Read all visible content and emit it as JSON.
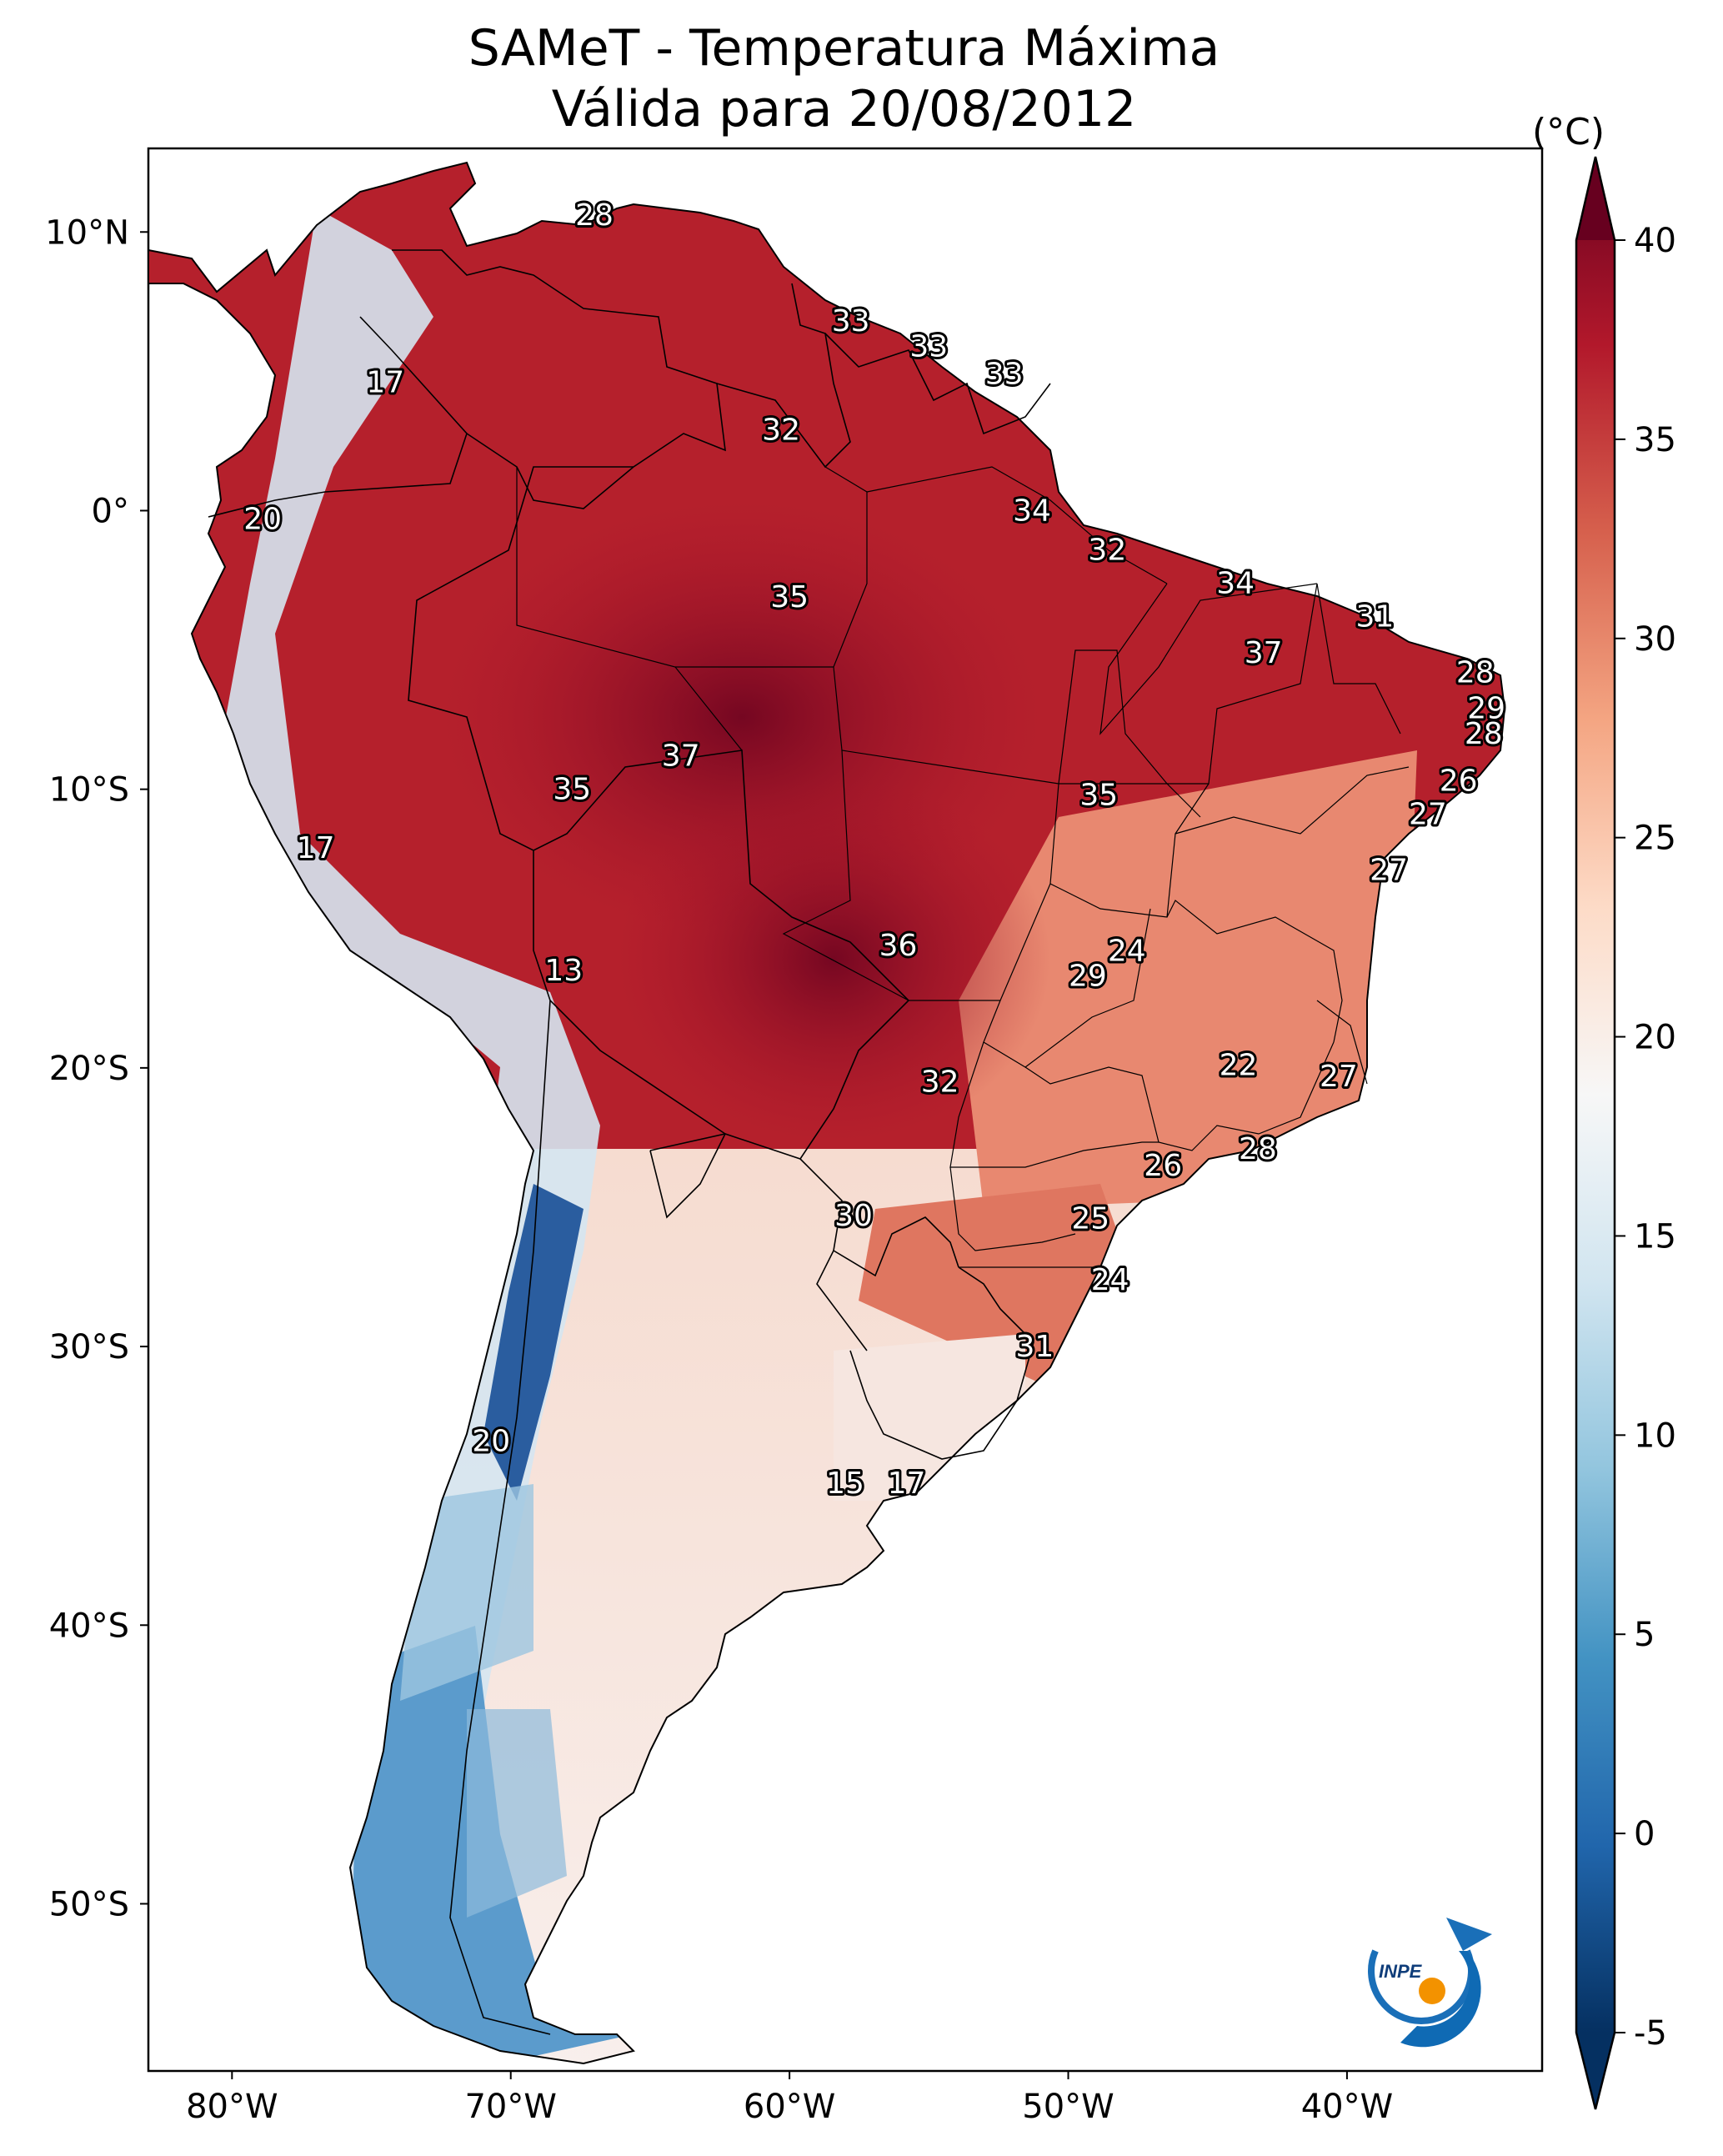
{
  "title": {
    "line1": "SAMeT - Temperatura Máxima",
    "line2": "Válida para 20/08/2012"
  },
  "map": {
    "lon_ticks": [
      "80°W",
      "70°W",
      "60°W",
      "50°W",
      "40°W"
    ],
    "lat_ticks": [
      "10°N",
      "0°",
      "10°S",
      "20°S",
      "30°S",
      "40°S",
      "50°S"
    ],
    "extent": {
      "lon": [
        -83,
        -33
      ],
      "lat": [
        -56,
        13
      ]
    },
    "logo_text": "INPE",
    "station_labels": [
      {
        "v": "28",
        "lon": -67.0,
        "lat": 10.6
      },
      {
        "v": "17",
        "lon": -74.5,
        "lat": 4.6
      },
      {
        "v": "33",
        "lon": -57.8,
        "lat": 6.8
      },
      {
        "v": "33",
        "lon": -55.0,
        "lat": 5.9
      },
      {
        "v": "33",
        "lon": -52.3,
        "lat": 4.9
      },
      {
        "v": "32",
        "lon": -60.3,
        "lat": 2.9
      },
      {
        "v": "20",
        "lon": -78.9,
        "lat": -0.3
      },
      {
        "v": "34",
        "lon": -51.3,
        "lat": 0.0
      },
      {
        "v": "32",
        "lon": -48.6,
        "lat": -1.4
      },
      {
        "v": "34",
        "lon": -44.0,
        "lat": -2.6
      },
      {
        "v": "31",
        "lon": -39.0,
        "lat": -3.8
      },
      {
        "v": "35",
        "lon": -60.0,
        "lat": -3.1
      },
      {
        "v": "37",
        "lon": -43.0,
        "lat": -5.1
      },
      {
        "v": "28",
        "lon": -35.4,
        "lat": -5.8
      },
      {
        "v": "29",
        "lon": -35.0,
        "lat": -7.1
      },
      {
        "v": "28",
        "lon": -35.1,
        "lat": -8.0
      },
      {
        "v": "26",
        "lon": -36.0,
        "lat": -9.7
      },
      {
        "v": "37",
        "lon": -63.9,
        "lat": -8.8
      },
      {
        "v": "35",
        "lon": -67.8,
        "lat": -10.0
      },
      {
        "v": "35",
        "lon": -48.9,
        "lat": -10.2
      },
      {
        "v": "27",
        "lon": -37.1,
        "lat": -10.9
      },
      {
        "v": "17",
        "lon": -77.0,
        "lat": -12.1
      },
      {
        "v": "27",
        "lon": -38.5,
        "lat": -12.9
      },
      {
        "v": "36",
        "lon": -56.1,
        "lat": -15.6
      },
      {
        "v": "24",
        "lon": -47.9,
        "lat": -15.8
      },
      {
        "v": "29",
        "lon": -49.3,
        "lat": -16.7
      },
      {
        "v": "13",
        "lon": -68.1,
        "lat": -16.5
      },
      {
        "v": "22",
        "lon": -43.9,
        "lat": -19.9
      },
      {
        "v": "27",
        "lon": -40.3,
        "lat": -20.3
      },
      {
        "v": "32",
        "lon": -54.6,
        "lat": -20.5
      },
      {
        "v": "28",
        "lon": -43.2,
        "lat": -22.9
      },
      {
        "v": "26",
        "lon": -46.6,
        "lat": -23.5
      },
      {
        "v": "30",
        "lon": -57.7,
        "lat": -25.3
      },
      {
        "v": "25",
        "lon": -49.2,
        "lat": -25.4
      },
      {
        "v": "24",
        "lon": -48.5,
        "lat": -27.6
      },
      {
        "v": "31",
        "lon": -51.2,
        "lat": -30.0
      },
      {
        "v": "20",
        "lon": -70.7,
        "lat": -33.4
      },
      {
        "v": "15",
        "lon": -58.0,
        "lat": -34.9
      },
      {
        "v": "17",
        "lon": -55.8,
        "lat": -34.9
      }
    ]
  },
  "colorbar": {
    "unit": "(°C)",
    "ticks": [
      "40",
      "35",
      "30",
      "25",
      "20",
      "15",
      "10",
      "5",
      "0",
      "-5"
    ],
    "range": [
      -5,
      40
    ],
    "colors": [
      "#053061",
      "#2166ac",
      "#4393c3",
      "#92c5de",
      "#d1e5f0",
      "#f7f7f7",
      "#fddbc7",
      "#f4a582",
      "#d6604d",
      "#b2182b",
      "#67001f"
    ]
  }
}
